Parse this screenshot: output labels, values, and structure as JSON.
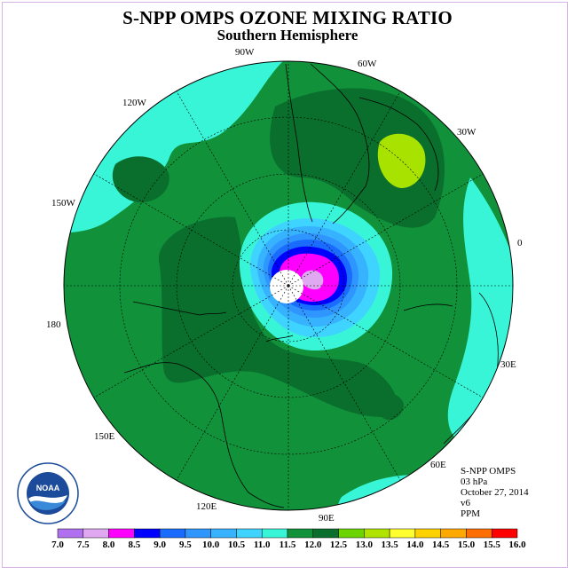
{
  "header": {
    "title": "S-NPP OMPS OZONE MIXING RATIO",
    "subtitle": "Southern Hemisphere"
  },
  "map_labels": {
    "lon_90w": "90W",
    "lon_60w": "60W",
    "lon_30w": "30W",
    "lon_120w": "120W",
    "lon_150w": "150W",
    "lon_0": "0",
    "lon_180": "180",
    "lon_30e": "30E",
    "lon_150e": "150E",
    "lon_60e": "60E",
    "lon_120e": "120E",
    "lon_90e": "90E"
  },
  "info": {
    "instrument": "S-NPP OMPS",
    "level": "03 hPa",
    "date": "October 27, 2014",
    "version": "v6",
    "units": "PPM"
  },
  "scale": {
    "ticks": [
      "7.0",
      "7.5",
      "8.0",
      "8.5",
      "9.0",
      "9.5",
      "10.0",
      "10.5",
      "11.0",
      "11.5",
      "12.0",
      "12.5",
      "13.0",
      "13.5",
      "14.0",
      "14.5",
      "15.0",
      "15.5",
      "16.0"
    ],
    "colors": [
      "#b070f0",
      "#dfa8f0",
      "#ff00ff",
      "#0000ff",
      "#1a6cff",
      "#2f95ff",
      "#36b2ff",
      "#3fd3ff",
      "#38f5d8",
      "#11923a",
      "#0a6f2d",
      "#6cd400",
      "#b0e400",
      "#ffff30",
      "#ffd200",
      "#ffa800",
      "#ff6e00",
      "#ff0000",
      "#9b5a2f"
    ]
  },
  "field_colors": {
    "level_11_0_11_5": "#11923a",
    "level_11_5_12_0": "#0a6f2d",
    "level_10_5_11_0": "#38f5d8",
    "level_12_0_12_5": "#a8e200"
  },
  "logo": {
    "text": "NOAA",
    "ring_text": "NATIONAL OCEANIC AND ATMOSPHERIC ADMINISTRATION · U.S. DEPARTMENT OF COMMERCE"
  }
}
